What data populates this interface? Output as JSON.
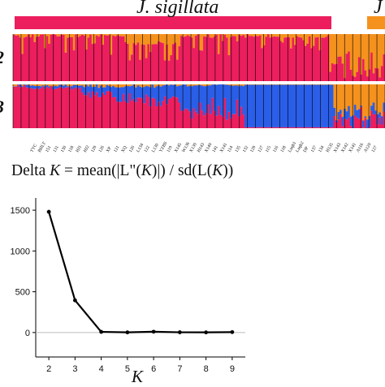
{
  "structure_panel": {
    "group_labels": [
      "J. sigillata",
      "J"
    ],
    "k_labels": [
      "2",
      "3"
    ],
    "sample_labels": [
      "TYC",
      "BHLT",
      "151",
      "131",
      "130",
      "118",
      "HJ1",
      "HJ2",
      "129",
      "126",
      "XP",
      "121",
      "XQ",
      "126",
      "L134",
      "122",
      "L130",
      "YZBS",
      "119",
      "X145",
      "W136",
      "X139",
      "H143",
      "X140",
      "141",
      "X141",
      "114",
      "135",
      "132",
      "129",
      "127",
      "115",
      "116",
      "118",
      "Luqb1",
      "Luqb2",
      "DP",
      "137",
      "134",
      "H135",
      "X143",
      "X142",
      "X141",
      "A116",
      "A120",
      "127"
    ],
    "colors": {
      "pink": "#ec1e5d",
      "orange": "#f5921e",
      "blue": "#2a5ee8"
    }
  },
  "formula": {
    "prefix": "Delta ",
    "k": "K",
    "mid1": " = mean(|L\"(",
    "mid2": ")|) / sd(L(",
    "suffix": "))"
  },
  "chart_data": {
    "type": "line",
    "x": [
      2,
      3,
      4,
      5,
      6,
      7,
      8,
      9
    ],
    "y": [
      1480,
      395,
      8,
      2,
      10,
      3,
      2,
      5
    ],
    "xticks": [
      "2",
      "3",
      "4",
      "5",
      "6",
      "7",
      "8",
      "9"
    ],
    "yticks": [
      "0",
      "500",
      "1000",
      "1500"
    ],
    "ylim": [
      -300,
      1650
    ],
    "xlim": [
      1.5,
      9.5
    ],
    "xlabel": "K",
    "ylabel": "",
    "reference_line_y": 0,
    "colors": {
      "line": "#000000",
      "reference": "#bbbbbb"
    }
  }
}
